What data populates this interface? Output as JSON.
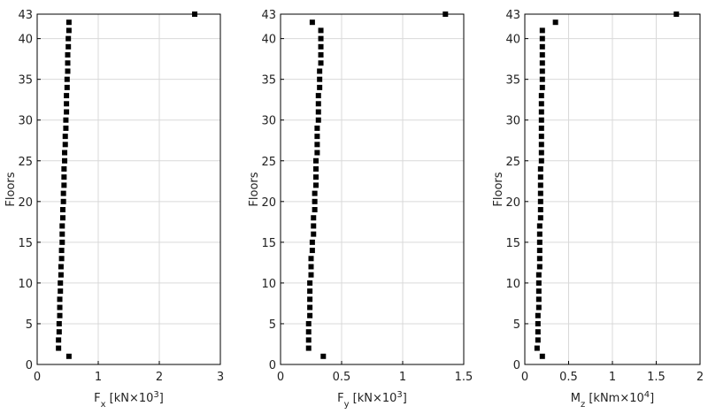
{
  "chart_data": [
    {
      "type": "scatter",
      "ylabel": "Floors",
      "xlabel": {
        "symbol": "F",
        "sub": "x",
        "unit": " [kN×10",
        "sup": "3",
        "close": "]"
      },
      "xlim": [
        0,
        3
      ],
      "xticks": [
        0,
        1,
        2,
        3
      ],
      "ylim": [
        0,
        43
      ],
      "yticks": [
        0,
        5,
        10,
        15,
        20,
        25,
        30,
        35,
        40,
        43
      ],
      "grid": true,
      "color": "#000000",
      "y": [
        1,
        2,
        3,
        4,
        5,
        6,
        7,
        8,
        9,
        10,
        11,
        12,
        13,
        14,
        15,
        16,
        17,
        18,
        19,
        20,
        21,
        22,
        23,
        24,
        25,
        26,
        27,
        28,
        29,
        30,
        31,
        32,
        33,
        34,
        35,
        36,
        37,
        38,
        39,
        40,
        41,
        42,
        43
      ],
      "x": [
        0.52,
        0.35,
        0.35,
        0.36,
        0.36,
        0.37,
        0.37,
        0.37,
        0.38,
        0.38,
        0.39,
        0.39,
        0.4,
        0.4,
        0.41,
        0.41,
        0.41,
        0.42,
        0.42,
        0.43,
        0.43,
        0.44,
        0.44,
        0.44,
        0.45,
        0.45,
        0.46,
        0.46,
        0.47,
        0.47,
        0.48,
        0.48,
        0.48,
        0.49,
        0.49,
        0.5,
        0.5,
        0.5,
        0.51,
        0.51,
        0.52,
        0.52,
        2.58
      ]
    },
    {
      "type": "scatter",
      "ylabel": "Floors",
      "xlabel": {
        "symbol": "F",
        "sub": "y",
        "unit": " [kN×10",
        "sup": "3",
        "close": "]"
      },
      "xlim": [
        0,
        1.5
      ],
      "xticks": [
        0,
        0.5,
        1,
        1.5
      ],
      "ylim": [
        0,
        43
      ],
      "yticks": [
        0,
        5,
        10,
        15,
        20,
        25,
        30,
        35,
        40,
        43
      ],
      "grid": true,
      "color": "#000000",
      "y": [
        1,
        2,
        3,
        4,
        5,
        6,
        7,
        8,
        9,
        10,
        11,
        12,
        13,
        14,
        15,
        16,
        17,
        18,
        19,
        20,
        21,
        22,
        23,
        24,
        25,
        26,
        27,
        28,
        29,
        30,
        31,
        32,
        33,
        34,
        35,
        36,
        37,
        38,
        39,
        40,
        41,
        42,
        43
      ],
      "x": [
        0.35,
        0.23,
        0.23,
        0.23,
        0.23,
        0.24,
        0.24,
        0.24,
        0.24,
        0.24,
        0.25,
        0.25,
        0.25,
        0.26,
        0.26,
        0.27,
        0.27,
        0.27,
        0.28,
        0.28,
        0.28,
        0.29,
        0.29,
        0.29,
        0.29,
        0.3,
        0.3,
        0.3,
        0.3,
        0.31,
        0.31,
        0.31,
        0.31,
        0.32,
        0.32,
        0.32,
        0.33,
        0.33,
        0.33,
        0.33,
        0.33,
        0.26,
        1.35
      ]
    },
    {
      "type": "scatter",
      "ylabel": "Floors",
      "xlabel": {
        "symbol": "M",
        "sub": "z",
        "unit": " [kNm×10",
        "sup": "4",
        "close": "]"
      },
      "xlim": [
        0,
        2
      ],
      "xticks": [
        0,
        0.5,
        1,
        1.5,
        2
      ],
      "ylim": [
        0,
        43
      ],
      "yticks": [
        0,
        5,
        10,
        15,
        20,
        25,
        30,
        35,
        40,
        43
      ],
      "grid": true,
      "color": "#000000",
      "y": [
        1,
        2,
        3,
        4,
        5,
        6,
        7,
        8,
        9,
        10,
        11,
        12,
        13,
        14,
        15,
        16,
        17,
        18,
        19,
        20,
        21,
        22,
        23,
        24,
        25,
        26,
        27,
        28,
        29,
        30,
        31,
        32,
        33,
        34,
        35,
        36,
        37,
        38,
        39,
        40,
        41,
        42,
        43
      ],
      "x": [
        0.2,
        0.14,
        0.15,
        0.15,
        0.15,
        0.15,
        0.16,
        0.16,
        0.16,
        0.16,
        0.16,
        0.17,
        0.17,
        0.17,
        0.17,
        0.17,
        0.17,
        0.18,
        0.18,
        0.18,
        0.18,
        0.18,
        0.18,
        0.18,
        0.19,
        0.19,
        0.19,
        0.19,
        0.19,
        0.19,
        0.19,
        0.19,
        0.19,
        0.2,
        0.2,
        0.2,
        0.2,
        0.2,
        0.2,
        0.2,
        0.2,
        0.35,
        1.73
      ]
    }
  ]
}
